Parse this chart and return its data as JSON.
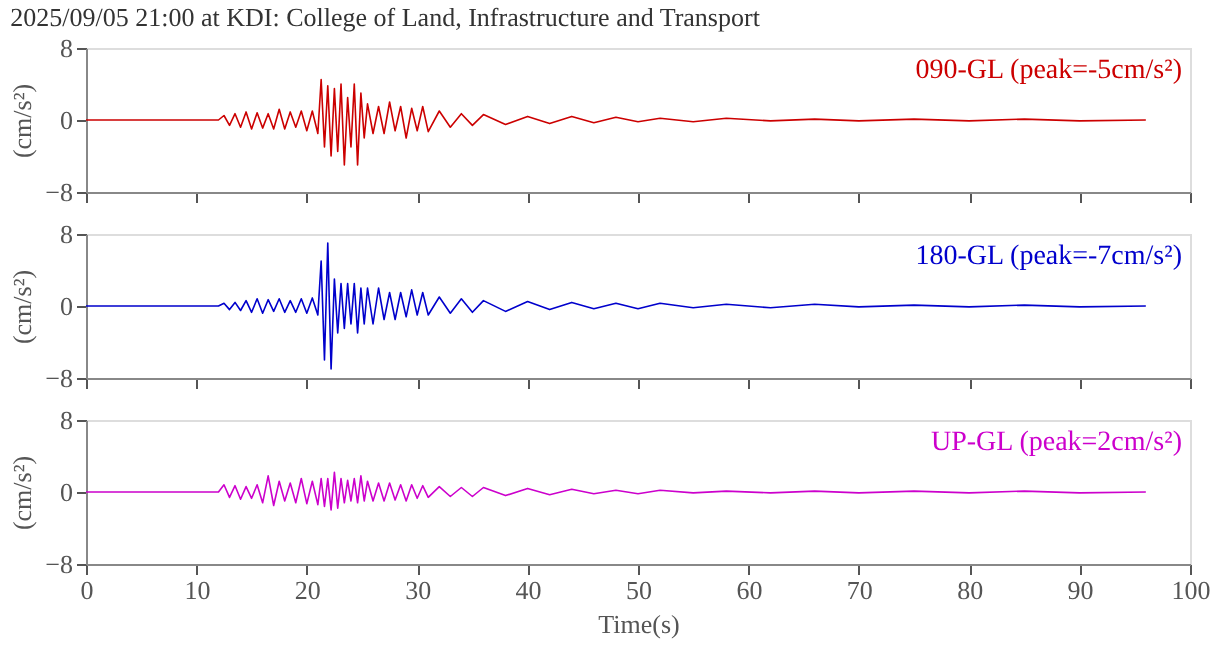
{
  "chart_data": [
    {
      "type": "line",
      "title": "2025/09/05 21:00 at KDI: College of Land, Infrastructure and Transport",
      "ylabel": "(cm/s²)",
      "xlim": [
        0,
        100
      ],
      "xticks": [
        0,
        10,
        20,
        30,
        40,
        50,
        60,
        70,
        80,
        90,
        100
      ],
      "ylim": [
        -8,
        8
      ],
      "yticks": [
        -8,
        0,
        8
      ],
      "tick_labels": "y",
      "grid": false,
      "x": [
        0,
        12,
        12.5,
        13,
        13.5,
        14,
        14.5,
        15,
        15.5,
        16,
        16.5,
        17,
        17.5,
        18,
        18.5,
        19,
        19.5,
        20,
        20.5,
        21,
        21.3,
        21.6,
        21.9,
        22.2,
        22.5,
        22.8,
        23.1,
        23.4,
        23.7,
        24,
        24.3,
        24.6,
        24.9,
        25.2,
        25.5,
        26,
        26.5,
        27,
        27.5,
        28,
        28.5,
        29,
        29.5,
        30,
        30.5,
        31,
        32,
        33,
        34,
        35,
        36,
        38,
        40,
        42,
        44,
        46,
        48,
        50,
        52,
        55,
        58,
        62,
        66,
        70,
        75,
        80,
        85,
        90,
        96
      ],
      "series": [
        {
          "name": "090-GL (peak=-5cm/s²)",
          "color": "#cc0000",
          "values": [
            0,
            0,
            0.5,
            -0.6,
            0.7,
            -0.8,
            0.9,
            -1,
            0.8,
            -0.9,
            0.7,
            -1,
            1.2,
            -1,
            0.9,
            -0.8,
            1,
            -1.2,
            1,
            -1.5,
            4.5,
            -3,
            3.8,
            -4,
            3.5,
            -3.5,
            4,
            -5,
            2.5,
            -3,
            4,
            -5,
            3,
            -2,
            1.8,
            -1.5,
            1.5,
            -1.5,
            2,
            -1.2,
            1.5,
            -2,
            1.3,
            -1.2,
            1.5,
            -1.3,
            1,
            -0.8,
            0.7,
            -0.6,
            0.6,
            -0.5,
            0.4,
            -0.4,
            0.4,
            -0.3,
            0.3,
            -0.2,
            0.2,
            -0.2,
            0.2,
            -0.1,
            0.1,
            -0.1,
            0.1,
            -0.1,
            0.1,
            -0.1,
            0
          ]
        }
      ]
    },
    {
      "type": "line",
      "ylabel": "(cm/s²)",
      "xlim": [
        0,
        100
      ],
      "xticks": [
        0,
        10,
        20,
        30,
        40,
        50,
        60,
        70,
        80,
        90,
        100
      ],
      "ylim": [
        -8,
        8
      ],
      "yticks": [
        -8,
        0,
        8
      ],
      "tick_labels": "y",
      "grid": false,
      "x": [
        0,
        12,
        12.5,
        13,
        13.5,
        14,
        14.5,
        15,
        15.5,
        16,
        16.5,
        17,
        17.5,
        18,
        18.5,
        19,
        19.5,
        20,
        20.5,
        21,
        21.3,
        21.6,
        21.9,
        22.2,
        22.5,
        22.8,
        23.1,
        23.4,
        23.7,
        24,
        24.3,
        24.6,
        24.9,
        25.2,
        25.5,
        26,
        26.5,
        27,
        27.5,
        28,
        28.5,
        29,
        29.5,
        30,
        30.5,
        31,
        32,
        33,
        34,
        35,
        36,
        38,
        40,
        42,
        44,
        46,
        48,
        50,
        52,
        55,
        58,
        62,
        66,
        70,
        75,
        80,
        85,
        90,
        96
      ],
      "series": [
        {
          "name": "180-GL (peak=-7cm/s²)",
          "color": "#0000cc",
          "values": [
            0,
            0,
            0.3,
            -0.4,
            0.4,
            -0.5,
            0.6,
            -0.7,
            0.8,
            -0.8,
            0.7,
            -0.6,
            0.8,
            -0.7,
            0.6,
            -0.7,
            0.8,
            -0.8,
            0.9,
            -1,
            5,
            -6,
            7,
            -7,
            3,
            -3,
            2.5,
            -2.5,
            2.5,
            -2,
            2.5,
            -3,
            2,
            -2,
            2,
            -2,
            2,
            -1.5,
            1.5,
            -1.5,
            1.5,
            -1.2,
            1.8,
            -1,
            1.5,
            -1,
            1,
            -0.8,
            0.8,
            -0.7,
            0.6,
            -0.6,
            0.5,
            -0.4,
            0.4,
            -0.3,
            0.3,
            -0.3,
            0.3,
            -0.2,
            0.2,
            -0.2,
            0.2,
            -0.1,
            0.1,
            -0.1,
            0.1,
            -0.1,
            0
          ]
        }
      ]
    },
    {
      "type": "line",
      "xlabel": "Time(s)",
      "ylabel": "(cm/s²)",
      "xlim": [
        0,
        100
      ],
      "xticks": [
        0,
        10,
        20,
        30,
        40,
        50,
        60,
        70,
        80,
        90,
        100
      ],
      "ylim": [
        -8,
        8
      ],
      "yticks": [
        -8,
        0,
        8
      ],
      "grid": false,
      "x": [
        0,
        12,
        12.5,
        13,
        13.5,
        14,
        14.5,
        15,
        15.5,
        16,
        16.5,
        17,
        17.5,
        18,
        18.5,
        19,
        19.5,
        20,
        20.5,
        21,
        21.3,
        21.6,
        21.9,
        22.2,
        22.5,
        22.8,
        23.1,
        23.4,
        23.7,
        24,
        24.3,
        24.6,
        24.9,
        25.2,
        25.5,
        26,
        26.5,
        27,
        27.5,
        28,
        28.5,
        29,
        29.5,
        30,
        30.5,
        31,
        32,
        33,
        34,
        35,
        36,
        38,
        40,
        42,
        44,
        46,
        48,
        50,
        52,
        55,
        58,
        62,
        66,
        70,
        75,
        80,
        85,
        90,
        96
      ],
      "series": [
        {
          "name": "UP-GL (peak=2cm/s²)",
          "color": "#cc00cc",
          "values": [
            0,
            0,
            0.8,
            -0.6,
            0.7,
            -0.8,
            0.6,
            -0.7,
            0.8,
            -1.2,
            1.8,
            -1.5,
            1.2,
            -1,
            1,
            -1.2,
            1.5,
            -1.3,
            1.2,
            -1.4,
            1.5,
            -1.6,
            1.5,
            -2,
            2.2,
            -1.8,
            1.5,
            -1.2,
            1.3,
            -1,
            1.5,
            -1.2,
            1.8,
            -1,
            1.2,
            -1,
            1,
            -1,
            1,
            -0.9,
            0.8,
            -1,
            0.8,
            -0.7,
            0.7,
            -0.6,
            0.6,
            -0.5,
            0.5,
            -0.5,
            0.5,
            -0.4,
            0.4,
            -0.3,
            0.3,
            -0.2,
            0.2,
            -0.2,
            0.2,
            -0.1,
            0.1,
            -0.1,
            0.1,
            -0.1,
            0.1,
            -0.1,
            0.1,
            -0.1,
            0
          ]
        }
      ]
    }
  ]
}
